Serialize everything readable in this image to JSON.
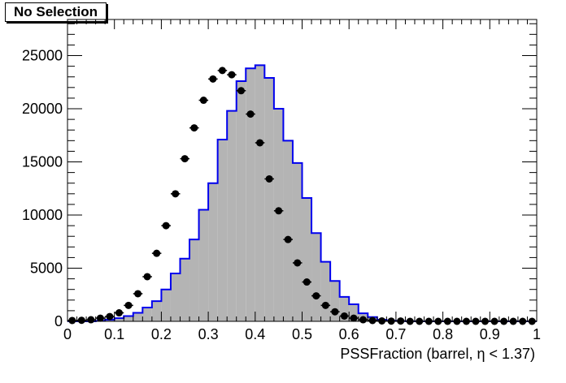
{
  "chart_data": {
    "type": "bar",
    "title": "No Selection",
    "xlabel": "PSSFraction (barrel,  η < 1.37)",
    "ylabel": "",
    "xlim": [
      0,
      1
    ],
    "ylim": [
      0,
      28400
    ],
    "grid": false,
    "x_ticks": [
      "0",
      "0.1",
      "0.2",
      "0.3",
      "0.4",
      "0.5",
      "0.6",
      "0.7",
      "0.8",
      "0.9",
      "1"
    ],
    "y_ticks": [
      "0",
      "5000",
      "10000",
      "15000",
      "20000",
      "25000"
    ],
    "bin_edges_start": 0,
    "bin_width": 0.02,
    "series": [
      {
        "style": "filled step histogram",
        "fill": "#b4b4b4",
        "line": "#0000ee",
        "values": [
          0,
          0,
          0,
          50,
          150,
          300,
          500,
          800,
          1300,
          1900,
          3000,
          4500,
          5900,
          7700,
          10500,
          13000,
          17100,
          19800,
          22600,
          23800,
          24100,
          22900,
          20000,
          17000,
          14900,
          11600,
          8300,
          5600,
          3800,
          2300,
          1600,
          750,
          400,
          150,
          60,
          30,
          10,
          0,
          0,
          0,
          0,
          0,
          0,
          0,
          0,
          0,
          0,
          0,
          0,
          0
        ]
      },
      {
        "style": "markers with x error bars",
        "marker": "#000000",
        "values": [
          80,
          100,
          150,
          300,
          450,
          800,
          1500,
          2600,
          4200,
          6400,
          9000,
          12000,
          15300,
          18200,
          20800,
          22800,
          23600,
          23200,
          21700,
          19500,
          16800,
          13400,
          10400,
          7700,
          5500,
          3700,
          2400,
          1500,
          900,
          500,
          300,
          150,
          80,
          40,
          20,
          30,
          0,
          0,
          0,
          0,
          0,
          0,
          0,
          0,
          0,
          0,
          0,
          0,
          0,
          0
        ],
        "bin_centers": [
          0.01,
          0.03,
          0.05,
          0.07,
          0.09,
          0.11,
          0.13,
          0.15,
          0.17,
          0.19,
          0.21,
          0.23,
          0.25,
          0.27,
          0.29,
          0.31,
          0.33,
          0.35,
          0.37,
          0.39,
          0.41,
          0.43,
          0.45,
          0.47,
          0.49,
          0.51,
          0.53,
          0.55,
          0.57,
          0.59,
          0.61,
          0.63,
          0.65,
          0.67,
          0.69,
          0.71,
          0.73,
          0.75,
          0.77,
          0.79,
          0.81,
          0.83,
          0.85,
          0.87,
          0.89,
          0.91,
          0.93,
          0.95,
          0.97,
          0.99
        ]
      }
    ]
  }
}
